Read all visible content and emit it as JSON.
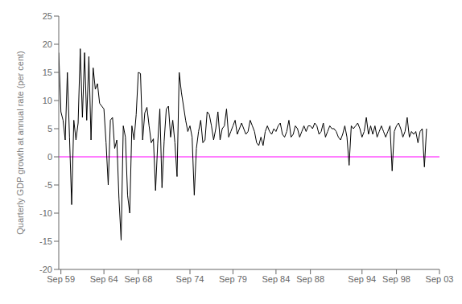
{
  "chart_data": {
    "type": "line",
    "ylabel": "Quarterly GDP growth at annual rate (per cent)",
    "color": "#000000",
    "reference_line": {
      "y": 0,
      "color": "#ff00ff"
    },
    "xlim": [
      1959.5,
      2003.75
    ],
    "xticks": [
      {
        "value": 1959.75,
        "label": "Sep 59"
      },
      {
        "value": 1964.75,
        "label": "Sep 64"
      },
      {
        "value": 1968.75,
        "label": "Sep 68"
      },
      {
        "value": 1974.75,
        "label": "Sep 74"
      },
      {
        "value": 1979.75,
        "label": "Sep 79"
      },
      {
        "value": 1984.75,
        "label": "Sep 84"
      },
      {
        "value": 1988.75,
        "label": "Sep 88"
      },
      {
        "value": 1994.75,
        "label": "Sep 94"
      },
      {
        "value": 1998.75,
        "label": "Sep 98"
      },
      {
        "value": 2003.75,
        "label": "Sep 03"
      }
    ],
    "ylim": [
      -20,
      25
    ],
    "yticks": [
      -20,
      -15,
      -10,
      -5,
      0,
      5,
      10,
      15,
      20,
      25
    ],
    "grid": false,
    "x": [
      1959.5,
      1959.75,
      1960,
      1960.25,
      1960.5,
      1960.75,
      1961,
      1961.25,
      1961.5,
      1961.75,
      1962,
      1962.25,
      1962.5,
      1962.75,
      1963,
      1963.25,
      1963.5,
      1963.75,
      1964,
      1964.25,
      1964.5,
      1964.75,
      1965,
      1965.25,
      1965.5,
      1965.75,
      1966,
      1966.25,
      1966.5,
      1966.75,
      1967,
      1967.25,
      1967.5,
      1967.75,
      1968,
      1968.25,
      1968.5,
      1968.75,
      1969,
      1969.25,
      1969.5,
      1969.75,
      1970,
      1970.25,
      1970.5,
      1970.75,
      1971,
      1971.25,
      1971.5,
      1971.75,
      1972,
      1972.25,
      1972.5,
      1972.75,
      1973,
      1973.25,
      1973.5,
      1973.75,
      1974,
      1974.25,
      1974.5,
      1974.75,
      1975,
      1975.25,
      1975.5,
      1975.75,
      1976,
      1976.25,
      1976.5,
      1976.75,
      1977,
      1977.25,
      1977.5,
      1977.75,
      1978,
      1978.25,
      1978.5,
      1978.75,
      1979,
      1979.25,
      1979.5,
      1979.75,
      1980,
      1980.25,
      1980.5,
      1980.75,
      1981,
      1981.25,
      1981.5,
      1981.75,
      1982,
      1982.25,
      1982.5,
      1982.75,
      1983,
      1983.25,
      1983.5,
      1983.75,
      1984,
      1984.25,
      1984.5,
      1984.75,
      1985,
      1985.25,
      1985.5,
      1985.75,
      1986,
      1986.25,
      1986.5,
      1986.75,
      1987,
      1987.25,
      1987.5,
      1987.75,
      1988,
      1988.25,
      1988.5,
      1988.75,
      1989,
      1989.25,
      1989.5,
      1989.75,
      1990,
      1990.25,
      1990.5,
      1990.75,
      1991,
      1991.25,
      1991.5,
      1991.75,
      1992,
      1992.25,
      1992.5,
      1992.75,
      1993,
      1993.25,
      1993.5,
      1993.75,
      1994,
      1994.25,
      1994.5,
      1994.75,
      1995,
      1995.25,
      1995.5,
      1995.75,
      1996,
      1996.25,
      1996.5,
      1996.75,
      1997,
      1997.25,
      1997.5,
      1997.75,
      1998,
      1998.25,
      1998.5,
      1998.75,
      1999,
      1999.25,
      1999.5,
      1999.75,
      2000,
      2000.25,
      2000.5,
      2000.75,
      2001,
      2001.25,
      2001.5,
      2001.75,
      2002,
      2002.25
    ],
    "values": [
      18.5,
      8.0,
      6.5,
      3.0,
      15.0,
      3.5,
      -8.5,
      6.5,
      3.0,
      6.0,
      19.2,
      7.0,
      18.5,
      6.5,
      17.8,
      3.0,
      15.8,
      12.0,
      13.0,
      9.5,
      9.0,
      8.5,
      2.5,
      -5.0,
      6.5,
      7.0,
      1.5,
      3.0,
      -7.5,
      -14.8,
      5.5,
      3.5,
      -6.8,
      -10.0,
      5.5,
      3.0,
      7.5,
      15.0,
      14.8,
      3.0,
      7.8,
      8.8,
      5.5,
      2.5,
      3.2,
      -6.0,
      2.3,
      8.5,
      -5.5,
      2.8,
      8.5,
      9.0,
      3.5,
      6.5,
      2.5,
      -3.5,
      15.0,
      11.5,
      9.0,
      6.5,
      4.5,
      5.5,
      3.5,
      -6.8,
      1.5,
      4.5,
      6.5,
      2.5,
      3.0,
      8.0,
      7.5,
      5.5,
      3.0,
      5.0,
      8.0,
      3.0,
      5.0,
      5.5,
      8.5,
      3.5,
      4.5,
      5.5,
      6.5,
      4.0,
      5.0,
      6.0,
      5.0,
      4.0,
      4.5,
      6.5,
      5.5,
      4.5,
      2.5,
      2.0,
      3.5,
      2.0,
      4.5,
      5.5,
      4.5,
      4.0,
      5.0,
      4.5,
      5.5,
      6.0,
      4.0,
      3.5,
      4.5,
      6.5,
      3.5,
      4.0,
      5.5,
      5.0,
      3.5,
      4.5,
      5.5,
      4.5,
      5.5,
      5.5,
      5.0,
      6.0,
      5.5,
      4.0,
      4.5,
      6.0,
      3.5,
      4.5,
      5.5,
      5.0,
      5.0,
      4.5,
      3.5,
      3.0,
      4.0,
      5.5,
      3.5,
      -1.5,
      5.5,
      5.0,
      5.5,
      6.0,
      5.0,
      3.5,
      4.5,
      7.0,
      4.0,
      5.5,
      4.0,
      5.5,
      3.5,
      4.5,
      5.5,
      4.5,
      3.5,
      4.5,
      5.5,
      -2.5,
      4.5,
      5.5,
      6.0,
      5.0,
      3.5,
      4.5,
      7.0,
      3.5,
      4.5,
      4.0,
      4.5,
      2.5,
      4.5,
      5.0,
      -1.8,
      5.0
    ]
  }
}
